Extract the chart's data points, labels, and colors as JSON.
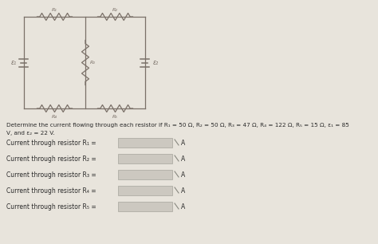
{
  "title_line1": "Determine the current flowing through each resistor if R₁ = 50 Ω, R₂ = 50 Ω, R₃ = 47 Ω, R₄ = 122 Ω, R₅ = 15 Ω, ε₁ = 85",
  "title_line2": "V, and ε₂ = 22 V.",
  "questions": [
    "Current through resistor R₁ =",
    "Current through resistor R₂ =",
    "Current through resistor R₃ =",
    "Current through resistor R₄ =",
    "Current through resistor R₅ ="
  ],
  "unit": "A",
  "fig_bg": "#e8e4dc",
  "text_color": "#2a2a2a",
  "input_box_color": "#ccc8c0",
  "circuit_color": "#7a7068"
}
